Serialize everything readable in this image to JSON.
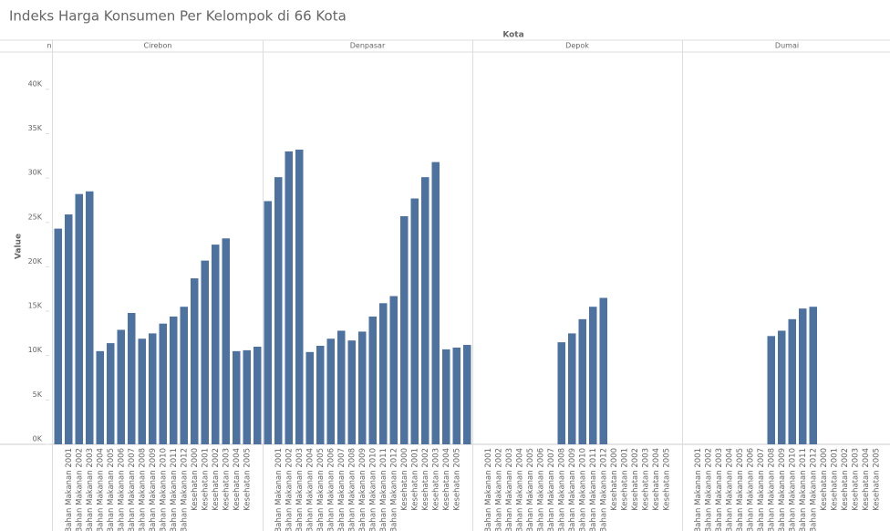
{
  "chart_data": {
    "type": "bar",
    "title": "Indeks Harga Konsumen Per Kelompok di 66 Kota",
    "facet_header": "Kota",
    "y_label": "Value",
    "categories": [
      null,
      "Bahan Makanan 2001",
      "Bahan Makanan 2002",
      "Bahan Makanan 2003",
      "Bahan Makanan 2004",
      "Bahan Makanan 2005",
      "Bahan Makanan 2006",
      "Bahan Makanan 2007",
      "Bahan Makanan 2008",
      "Bahan Makanan 2009",
      "Bahan Makanan 2010",
      "Bahan Makanan 2011",
      "Bahan Makanan 2012",
      "Kesehatan 2000",
      "Kesehatan 2001",
      "Kesehatan 2002",
      "Kesehatan 2003",
      "Kesehatan 2004",
      "Kesehatan 2005",
      null
    ],
    "facets": [
      {
        "name": "n"
      },
      {
        "name": "Cirebon",
        "values": [
          24300,
          25900,
          28200,
          28500,
          10500,
          11400,
          12900,
          14800,
          11900,
          12500,
          13600,
          14400,
          15500,
          18700,
          20700,
          22500,
          23200,
          10500,
          10600,
          11000
        ]
      },
      {
        "name": "Denpasar",
        "values": [
          27400,
          30100,
          33000,
          33200,
          10400,
          11100,
          11900,
          12800,
          11700,
          12700,
          14400,
          15900,
          16700,
          25700,
          27700,
          30100,
          31800,
          10700,
          10900,
          11200
        ]
      },
      {
        "name": "Depok",
        "values": [
          null,
          null,
          null,
          null,
          null,
          null,
          null,
          null,
          11500,
          12500,
          14100,
          15500,
          16500,
          null,
          null,
          null,
          null,
          null,
          null,
          null
        ]
      },
      {
        "name": "Dumai",
        "values": [
          null,
          null,
          null,
          null,
          null,
          null,
          null,
          null,
          12200,
          12800,
          14100,
          15300,
          15500,
          null,
          null,
          null,
          null,
          null,
          null,
          null
        ]
      }
    ],
    "color": "#4e72a0",
    "ylim": [
      0,
      44200
    ],
    "yticks": [
      {
        "value": 0,
        "label": "0K"
      },
      {
        "value": 5000,
        "label": "5K"
      },
      {
        "value": 10000,
        "label": "10K"
      },
      {
        "value": 15000,
        "label": "15K"
      },
      {
        "value": 20000,
        "label": "20K"
      },
      {
        "value": 25000,
        "label": "25K"
      },
      {
        "value": 30000,
        "label": "30K"
      },
      {
        "value": 35000,
        "label": "35K"
      },
      {
        "value": 40000,
        "label": "40K"
      }
    ]
  }
}
